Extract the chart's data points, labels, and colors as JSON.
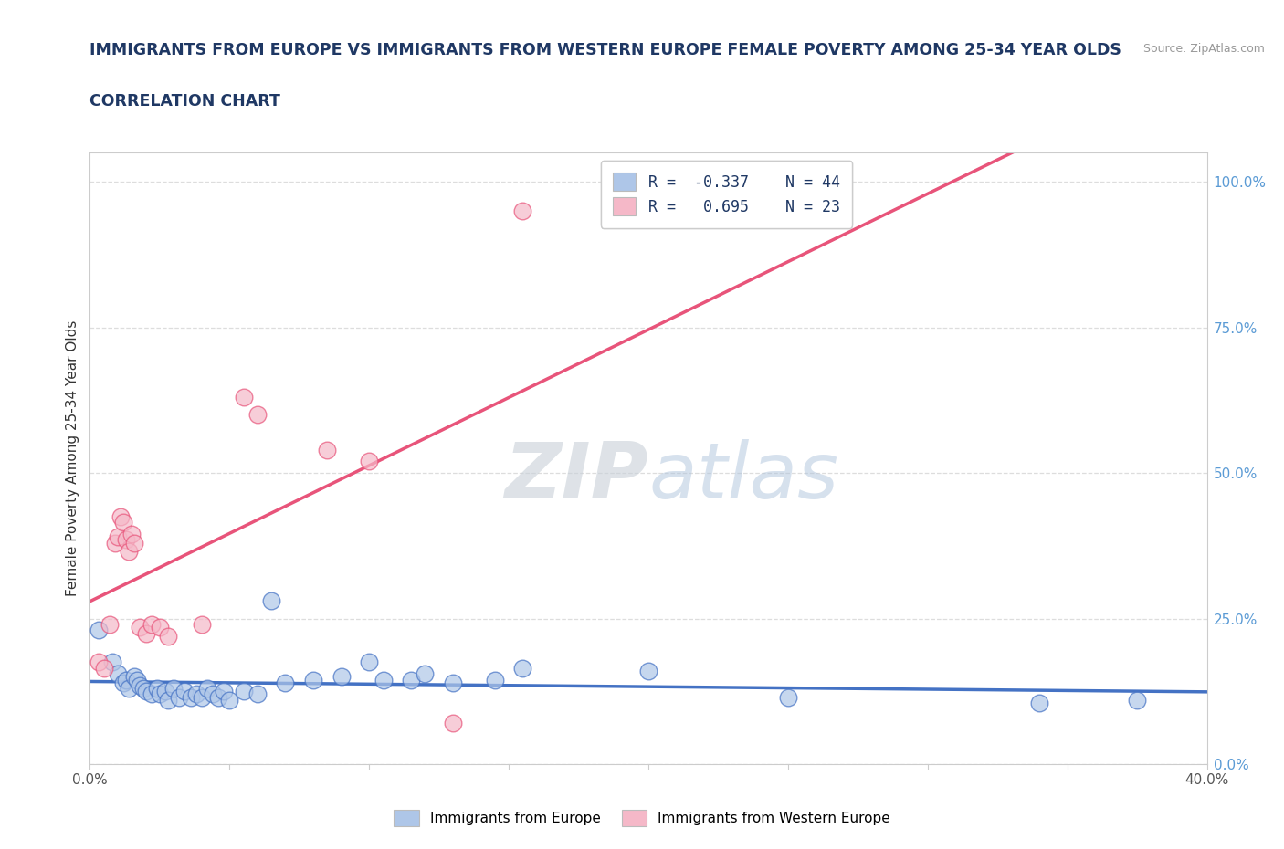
{
  "title_line1": "IMMIGRANTS FROM EUROPE VS IMMIGRANTS FROM WESTERN EUROPE FEMALE POVERTY AMONG 25-34 YEAR OLDS",
  "title_line2": "CORRELATION CHART",
  "source": "Source: ZipAtlas.com",
  "ylabel": "Female Poverty Among 25-34 Year Olds",
  "xlim": [
    0.0,
    0.4
  ],
  "ylim": [
    0.0,
    1.05
  ],
  "right_yticks": [
    0.0,
    0.25,
    0.5,
    0.75,
    1.0
  ],
  "right_yticklabels": [
    "0.0%",
    "25.0%",
    "50.0%",
    "75.0%",
    "100.0%"
  ],
  "xticks": [
    0.0,
    0.05,
    0.1,
    0.15,
    0.2,
    0.25,
    0.3,
    0.35,
    0.4
  ],
  "xticklabels": [
    "0.0%",
    "",
    "",
    "",
    "",
    "",
    "",
    "",
    "40.0%"
  ],
  "blue_R": -0.337,
  "blue_N": 44,
  "pink_R": 0.695,
  "pink_N": 23,
  "blue_color": "#aec6e8",
  "pink_color": "#f5b8c8",
  "blue_line_color": "#4472c4",
  "pink_line_color": "#e8547a",
  "blue_scatter": [
    [
      0.003,
      0.23
    ],
    [
      0.008,
      0.175
    ],
    [
      0.01,
      0.155
    ],
    [
      0.012,
      0.14
    ],
    [
      0.013,
      0.145
    ],
    [
      0.014,
      0.13
    ],
    [
      0.016,
      0.15
    ],
    [
      0.017,
      0.145
    ],
    [
      0.018,
      0.135
    ],
    [
      0.019,
      0.13
    ],
    [
      0.02,
      0.125
    ],
    [
      0.022,
      0.12
    ],
    [
      0.024,
      0.13
    ],
    [
      0.025,
      0.12
    ],
    [
      0.027,
      0.125
    ],
    [
      0.028,
      0.11
    ],
    [
      0.03,
      0.13
    ],
    [
      0.032,
      0.115
    ],
    [
      0.034,
      0.125
    ],
    [
      0.036,
      0.115
    ],
    [
      0.038,
      0.12
    ],
    [
      0.04,
      0.115
    ],
    [
      0.042,
      0.13
    ],
    [
      0.044,
      0.12
    ],
    [
      0.046,
      0.115
    ],
    [
      0.048,
      0.125
    ],
    [
      0.05,
      0.11
    ],
    [
      0.055,
      0.125
    ],
    [
      0.06,
      0.12
    ],
    [
      0.065,
      0.28
    ],
    [
      0.07,
      0.14
    ],
    [
      0.08,
      0.145
    ],
    [
      0.09,
      0.15
    ],
    [
      0.1,
      0.175
    ],
    [
      0.105,
      0.145
    ],
    [
      0.115,
      0.145
    ],
    [
      0.12,
      0.155
    ],
    [
      0.13,
      0.14
    ],
    [
      0.145,
      0.145
    ],
    [
      0.155,
      0.165
    ],
    [
      0.2,
      0.16
    ],
    [
      0.25,
      0.115
    ],
    [
      0.34,
      0.105
    ],
    [
      0.375,
      0.11
    ]
  ],
  "pink_scatter": [
    [
      0.003,
      0.175
    ],
    [
      0.005,
      0.165
    ],
    [
      0.007,
      0.24
    ],
    [
      0.009,
      0.38
    ],
    [
      0.01,
      0.39
    ],
    [
      0.011,
      0.425
    ],
    [
      0.012,
      0.415
    ],
    [
      0.013,
      0.385
    ],
    [
      0.014,
      0.365
    ],
    [
      0.015,
      0.395
    ],
    [
      0.016,
      0.38
    ],
    [
      0.018,
      0.235
    ],
    [
      0.02,
      0.225
    ],
    [
      0.022,
      0.24
    ],
    [
      0.025,
      0.235
    ],
    [
      0.028,
      0.22
    ],
    [
      0.04,
      0.24
    ],
    [
      0.055,
      0.63
    ],
    [
      0.06,
      0.6
    ],
    [
      0.085,
      0.54
    ],
    [
      0.1,
      0.52
    ],
    [
      0.13,
      0.07
    ],
    [
      0.155,
      0.95
    ]
  ],
  "watermark_zip": "ZIP",
  "watermark_atlas": "atlas",
  "title_color": "#1f3864",
  "axis_color": "#cccccc",
  "grid_color": "#dddddd",
  "right_label_color": "#5b9bd5",
  "background_color": "#ffffff"
}
